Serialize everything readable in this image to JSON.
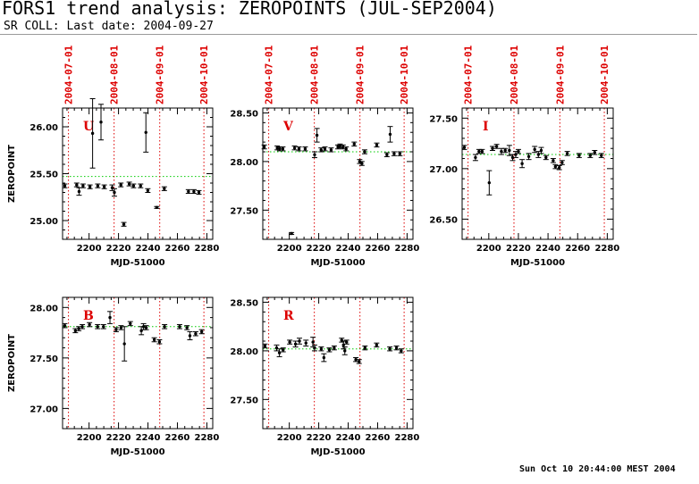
{
  "header": {
    "title": "FORS1 trend analysis: ZEROPOINTS (JUL-SEP2004)",
    "subtitle": "SR COLL: Last date: 2004-09-27"
  },
  "footer": {
    "timestamp": "Sun Oct 10 20:44:00 MEST 2004"
  },
  "colors": {
    "axis": "#000000",
    "month_marker": "#dd0000",
    "reference": "#00cc00",
    "filter_label": "#dd0000",
    "points": "#000000"
  },
  "chart_data": [
    {
      "type": "scatter",
      "filter": "U",
      "xlabel": "MJD-51000",
      "ylabel": "ZEROPOINT",
      "xlim": [
        2182,
        2284
      ],
      "ylim": [
        24.8,
        26.2
      ],
      "xticks": [
        "2200",
        "2220",
        "2240",
        "2260",
        "2280"
      ],
      "yticks": [
        "25.00",
        "25.50",
        "26.00"
      ],
      "month_markers": [
        {
          "x": 2186,
          "label": "2004-07-01"
        },
        {
          "x": 2217,
          "label": "2004-08-01"
        },
        {
          "x": 2248,
          "label": "2004-09-01"
        },
        {
          "x": 2278,
          "label": "2004-10-01"
        }
      ],
      "reference": 25.47,
      "points": [
        {
          "x": 2183.5,
          "y": 25.37,
          "err": 0.02
        },
        {
          "x": 2191.6,
          "y": 25.38,
          "err": 0.02
        },
        {
          "x": 2193.2,
          "y": 25.31,
          "err": 0.04
        },
        {
          "x": 2195.9,
          "y": 25.37,
          "err": 0.02
        },
        {
          "x": 2200.6,
          "y": 25.36,
          "err": 0.02
        },
        {
          "x": 2202.4,
          "y": 25.93,
          "err": 0.37
        },
        {
          "x": 2205.9,
          "y": 25.37,
          "err": 0.02
        },
        {
          "x": 2208.1,
          "y": 26.05,
          "err": 0.19
        },
        {
          "x": 2210.3,
          "y": 25.36,
          "err": 0.02
        },
        {
          "x": 2215.7,
          "y": 25.35,
          "err": 0.03
        },
        {
          "x": 2217.2,
          "y": 25.3,
          "err": 0.04
        },
        {
          "x": 2221.6,
          "y": 25.38,
          "err": 0.02
        },
        {
          "x": 2223.6,
          "y": 24.96,
          "err": 0.02
        },
        {
          "x": 2227.3,
          "y": 25.39,
          "err": 0.02
        },
        {
          "x": 2230.2,
          "y": 25.37,
          "err": 0.02
        },
        {
          "x": 2235.0,
          "y": 25.37,
          "err": 0.02
        },
        {
          "x": 2238.6,
          "y": 25.94,
          "err": 0.21
        },
        {
          "x": 2239.9,
          "y": 25.32,
          "err": 0.02
        },
        {
          "x": 2246.0,
          "y": 25.14,
          "err": 0.01
        },
        {
          "x": 2251.1,
          "y": 25.34,
          "err": 0.02
        },
        {
          "x": 2267.5,
          "y": 25.31,
          "err": 0.02
        },
        {
          "x": 2271.2,
          "y": 25.31,
          "err": 0.02
        },
        {
          "x": 2274.6,
          "y": 25.3,
          "err": 0.02
        }
      ]
    },
    {
      "type": "scatter",
      "filter": "V",
      "xlabel": "MJD-51000",
      "ylabel": "",
      "xlim": [
        2182,
        2284
      ],
      "ylim": [
        27.2,
        28.55
      ],
      "xticks": [
        "2200",
        "2220",
        "2240",
        "2260",
        "2280"
      ],
      "yticks": [
        "27.50",
        "28.00",
        "28.50"
      ],
      "month_markers": [
        {
          "x": 2186,
          "label": "2004-07-01"
        },
        {
          "x": 2217,
          "label": "2004-08-01"
        },
        {
          "x": 2248,
          "label": "2004-09-01"
        },
        {
          "x": 2278,
          "label": "2004-10-01"
        }
      ],
      "reference": 28.1,
      "points": [
        {
          "x": 2183.0,
          "y": 28.15,
          "err": 0.02
        },
        {
          "x": 2191.8,
          "y": 28.14,
          "err": 0.02
        },
        {
          "x": 2193.5,
          "y": 28.13,
          "err": 0.02
        },
        {
          "x": 2195.6,
          "y": 28.13,
          "err": 0.02
        },
        {
          "x": 2201.5,
          "y": 27.26,
          "err": 0.01
        },
        {
          "x": 2203.6,
          "y": 28.14,
          "err": 0.02
        },
        {
          "x": 2206.6,
          "y": 28.13,
          "err": 0.02
        },
        {
          "x": 2210.8,
          "y": 28.13,
          "err": 0.02
        },
        {
          "x": 2217.2,
          "y": 28.07,
          "err": 0.03
        },
        {
          "x": 2218.8,
          "y": 28.27,
          "err": 0.07
        },
        {
          "x": 2221.6,
          "y": 28.12,
          "err": 0.02
        },
        {
          "x": 2224.2,
          "y": 28.13,
          "err": 0.02
        },
        {
          "x": 2228.4,
          "y": 28.12,
          "err": 0.02
        },
        {
          "x": 2233.0,
          "y": 28.15,
          "err": 0.02
        },
        {
          "x": 2234.5,
          "y": 28.16,
          "err": 0.02
        },
        {
          "x": 2236.5,
          "y": 28.15,
          "err": 0.02
        },
        {
          "x": 2238.6,
          "y": 28.13,
          "err": 0.02
        },
        {
          "x": 2244.1,
          "y": 28.18,
          "err": 0.02
        },
        {
          "x": 2247.8,
          "y": 28.0,
          "err": 0.02
        },
        {
          "x": 2249.3,
          "y": 27.98,
          "err": 0.02
        },
        {
          "x": 2251.2,
          "y": 28.1,
          "err": 0.02
        },
        {
          "x": 2259.4,
          "y": 28.17,
          "err": 0.02
        },
        {
          "x": 2266.3,
          "y": 28.07,
          "err": 0.02
        },
        {
          "x": 2268.5,
          "y": 28.28,
          "err": 0.08
        },
        {
          "x": 2271.2,
          "y": 28.08,
          "err": 0.02
        },
        {
          "x": 2275.1,
          "y": 28.08,
          "err": 0.02
        }
      ]
    },
    {
      "type": "scatter",
      "filter": "I",
      "xlabel": "MJD-51000",
      "ylabel": "",
      "xlim": [
        2182,
        2284
      ],
      "ylim": [
        26.3,
        27.6
      ],
      "xticks": [
        "2200",
        "2220",
        "2240",
        "2260",
        "2280"
      ],
      "yticks": [
        "26.50",
        "27.00",
        "27.50"
      ],
      "month_markers": [
        {
          "x": 2186,
          "label": "2004-07-01"
        },
        {
          "x": 2217,
          "label": "2004-08-01"
        },
        {
          "x": 2248,
          "label": "2004-09-01"
        },
        {
          "x": 2278,
          "label": "2004-10-01"
        }
      ],
      "reference": 27.14,
      "points": [
        {
          "x": 2183.5,
          "y": 27.21,
          "err": 0.02
        },
        {
          "x": 2191.0,
          "y": 27.11,
          "err": 0.03
        },
        {
          "x": 2193.4,
          "y": 27.17,
          "err": 0.02
        },
        {
          "x": 2195.5,
          "y": 27.17,
          "err": 0.02
        },
        {
          "x": 2200.3,
          "y": 26.86,
          "err": 0.12
        },
        {
          "x": 2202.5,
          "y": 27.2,
          "err": 0.02
        },
        {
          "x": 2205.3,
          "y": 27.22,
          "err": 0.02
        },
        {
          "x": 2208.5,
          "y": 27.17,
          "err": 0.03
        },
        {
          "x": 2211.1,
          "y": 27.18,
          "err": 0.02
        },
        {
          "x": 2213.9,
          "y": 27.18,
          "err": 0.05
        },
        {
          "x": 2216.1,
          "y": 27.11,
          "err": 0.03
        },
        {
          "x": 2218.2,
          "y": 27.14,
          "err": 0.03
        },
        {
          "x": 2220.0,
          "y": 27.17,
          "err": 0.02
        },
        {
          "x": 2222.5,
          "y": 27.05,
          "err": 0.04
        },
        {
          "x": 2227.0,
          "y": 27.12,
          "err": 0.03
        },
        {
          "x": 2231.0,
          "y": 27.19,
          "err": 0.03
        },
        {
          "x": 2233.5,
          "y": 27.14,
          "err": 0.03
        },
        {
          "x": 2235.4,
          "y": 27.18,
          "err": 0.03
        },
        {
          "x": 2238.6,
          "y": 27.11,
          "err": 0.02
        },
        {
          "x": 2243.5,
          "y": 27.08,
          "err": 0.02
        },
        {
          "x": 2245.0,
          "y": 27.02,
          "err": 0.02
        },
        {
          "x": 2247.6,
          "y": 27.01,
          "err": 0.02
        },
        {
          "x": 2249.5,
          "y": 27.06,
          "err": 0.02
        },
        {
          "x": 2253.0,
          "y": 27.15,
          "err": 0.02
        },
        {
          "x": 2261.0,
          "y": 27.13,
          "err": 0.02
        },
        {
          "x": 2268.5,
          "y": 27.13,
          "err": 0.02
        },
        {
          "x": 2271.5,
          "y": 27.16,
          "err": 0.02
        },
        {
          "x": 2276.0,
          "y": 27.13,
          "err": 0.02
        }
      ]
    },
    {
      "type": "scatter",
      "filter": "B",
      "xlabel": "MJD-51000",
      "ylabel": "ZEROPOINT",
      "xlim": [
        2182,
        2284
      ],
      "ylim": [
        26.8,
        28.1
      ],
      "xticks": [
        "2200",
        "2220",
        "2240",
        "2260",
        "2280"
      ],
      "yticks": [
        "27.00",
        "27.50",
        "28.00"
      ],
      "month_markers": [
        {
          "x": 2186,
          "label": ""
        },
        {
          "x": 2217,
          "label": ""
        },
        {
          "x": 2248,
          "label": ""
        },
        {
          "x": 2278,
          "label": ""
        }
      ],
      "reference": 27.81,
      "points": [
        {
          "x": 2183.5,
          "y": 27.82,
          "err": 0.02
        },
        {
          "x": 2190.7,
          "y": 27.77,
          "err": 0.02
        },
        {
          "x": 2193.0,
          "y": 27.79,
          "err": 0.02
        },
        {
          "x": 2195.4,
          "y": 27.81,
          "err": 0.02
        },
        {
          "x": 2200.3,
          "y": 27.83,
          "err": 0.02
        },
        {
          "x": 2205.8,
          "y": 27.81,
          "err": 0.02
        },
        {
          "x": 2209.8,
          "y": 27.81,
          "err": 0.02
        },
        {
          "x": 2214.2,
          "y": 27.9,
          "err": 0.06
        },
        {
          "x": 2218.4,
          "y": 27.78,
          "err": 0.02
        },
        {
          "x": 2221.7,
          "y": 27.8,
          "err": 0.02
        },
        {
          "x": 2224.0,
          "y": 27.64,
          "err": 0.17
        },
        {
          "x": 2228.0,
          "y": 27.84,
          "err": 0.02
        },
        {
          "x": 2235.5,
          "y": 27.77,
          "err": 0.04
        },
        {
          "x": 2237.0,
          "y": 27.81,
          "err": 0.03
        },
        {
          "x": 2238.8,
          "y": 27.8,
          "err": 0.02
        },
        {
          "x": 2244.3,
          "y": 27.68,
          "err": 0.02
        },
        {
          "x": 2247.8,
          "y": 27.66,
          "err": 0.02
        },
        {
          "x": 2251.3,
          "y": 27.81,
          "err": 0.02
        },
        {
          "x": 2261.5,
          "y": 27.81,
          "err": 0.02
        },
        {
          "x": 2266.5,
          "y": 27.8,
          "err": 0.02
        },
        {
          "x": 2268.5,
          "y": 27.72,
          "err": 0.04
        },
        {
          "x": 2272.4,
          "y": 27.74,
          "err": 0.02
        },
        {
          "x": 2276.5,
          "y": 27.76,
          "err": 0.02
        }
      ]
    },
    {
      "type": "scatter",
      "filter": "R",
      "xlabel": "MJD-51000",
      "ylabel": "",
      "xlim": [
        2182,
        2284
      ],
      "ylim": [
        27.2,
        28.55
      ],
      "xticks": [
        "2200",
        "2220",
        "2240",
        "2260",
        "2280"
      ],
      "yticks": [
        "27.50",
        "28.00",
        "28.50"
      ],
      "month_markers": [
        {
          "x": 2186,
          "label": ""
        },
        {
          "x": 2217,
          "label": ""
        },
        {
          "x": 2248,
          "label": ""
        },
        {
          "x": 2278,
          "label": ""
        }
      ],
      "reference": 28.02,
      "points": [
        {
          "x": 2183.5,
          "y": 28.05,
          "err": 0.02
        },
        {
          "x": 2191.4,
          "y": 28.03,
          "err": 0.03
        },
        {
          "x": 2193.3,
          "y": 27.98,
          "err": 0.04
        },
        {
          "x": 2195.8,
          "y": 28.01,
          "err": 0.02
        },
        {
          "x": 2200.3,
          "y": 28.09,
          "err": 0.02
        },
        {
          "x": 2204.2,
          "y": 28.07,
          "err": 0.03
        },
        {
          "x": 2206.9,
          "y": 28.1,
          "err": 0.03
        },
        {
          "x": 2211.3,
          "y": 28.08,
          "err": 0.03
        },
        {
          "x": 2216.1,
          "y": 28.09,
          "err": 0.05
        },
        {
          "x": 2217.2,
          "y": 28.03,
          "err": 0.03
        },
        {
          "x": 2221.7,
          "y": 28.02,
          "err": 0.02
        },
        {
          "x": 2223.5,
          "y": 27.93,
          "err": 0.04
        },
        {
          "x": 2227.2,
          "y": 28.01,
          "err": 0.02
        },
        {
          "x": 2230.5,
          "y": 28.03,
          "err": 0.02
        },
        {
          "x": 2235.6,
          "y": 28.11,
          "err": 0.02
        },
        {
          "x": 2236.8,
          "y": 28.06,
          "err": 0.04
        },
        {
          "x": 2238.9,
          "y": 28.09,
          "err": 0.02
        },
        {
          "x": 2237.7,
          "y": 28.0,
          "err": 0.04
        },
        {
          "x": 2245.2,
          "y": 27.91,
          "err": 0.02
        },
        {
          "x": 2247.4,
          "y": 27.89,
          "err": 0.02
        },
        {
          "x": 2251.4,
          "y": 28.03,
          "err": 0.02
        },
        {
          "x": 2259.3,
          "y": 28.06,
          "err": 0.02
        },
        {
          "x": 2268.3,
          "y": 28.02,
          "err": 0.02
        },
        {
          "x": 2272.8,
          "y": 28.03,
          "err": 0.02
        },
        {
          "x": 2276.0,
          "y": 28.0,
          "err": 0.02
        }
      ]
    }
  ]
}
